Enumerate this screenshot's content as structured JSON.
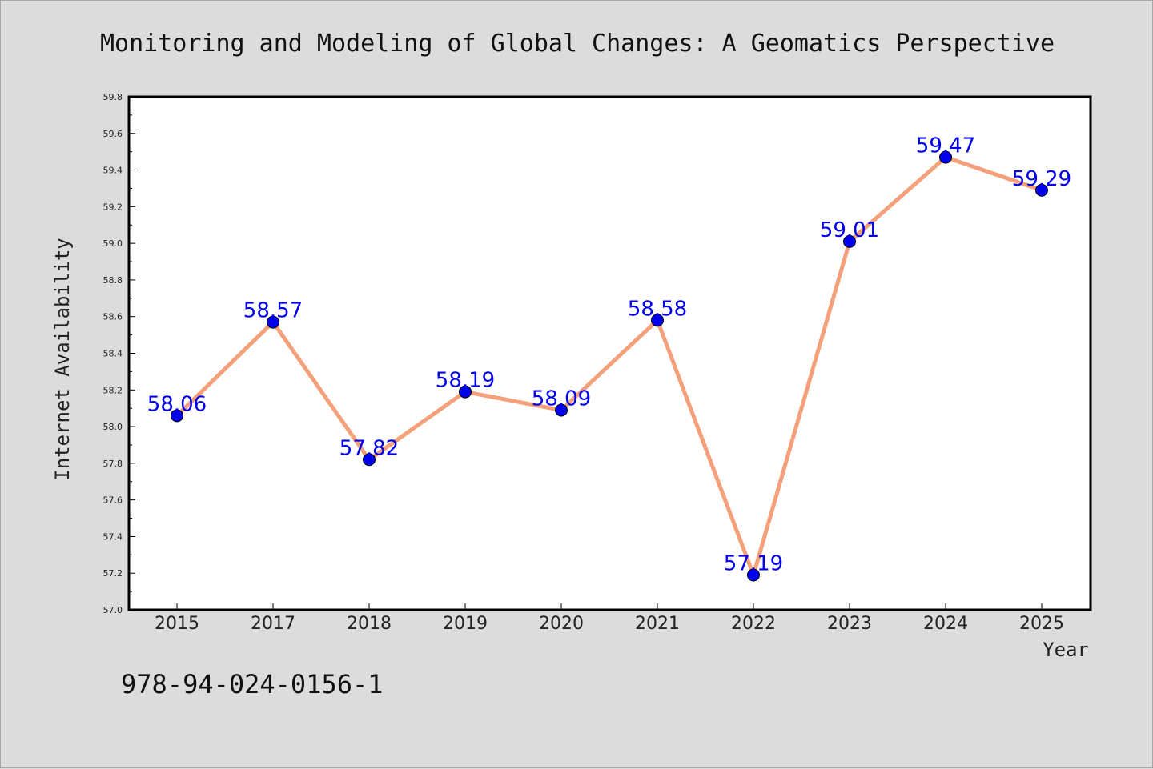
{
  "chart_data": {
    "type": "line",
    "title": "Monitoring and Modeling of Global Changes: A Geomatics Perspective",
    "xlabel": "Year",
    "ylabel": "Internet Availability",
    "categories": [
      "2015",
      "2017",
      "2018",
      "2019",
      "2020",
      "2021",
      "2022",
      "2023",
      "2024",
      "2025"
    ],
    "values": [
      58.06,
      58.57,
      57.82,
      58.19,
      58.09,
      58.58,
      57.19,
      59.01,
      59.47,
      59.29
    ],
    "value_labels": [
      "58.06",
      "58.57",
      "57.82",
      "58.19",
      "58.09",
      "58.58",
      "57.19",
      "59.01",
      "59.47",
      "59.29"
    ],
    "ylim": [
      57.0,
      59.8
    ],
    "yticks": [
      "57.0",
      "57.2",
      "57.4",
      "57.6",
      "57.8",
      "58.0",
      "58.2",
      "58.4",
      "58.6",
      "58.8",
      "59.0",
      "59.2",
      "59.4",
      "59.6",
      "59.8"
    ],
    "grid": false,
    "legend": "none",
    "line_color": "#f4a07a",
    "marker_color": "#0000ee",
    "label_color": "#0000ee"
  },
  "footer": {
    "isbn": "978-94-024-0156-1"
  }
}
